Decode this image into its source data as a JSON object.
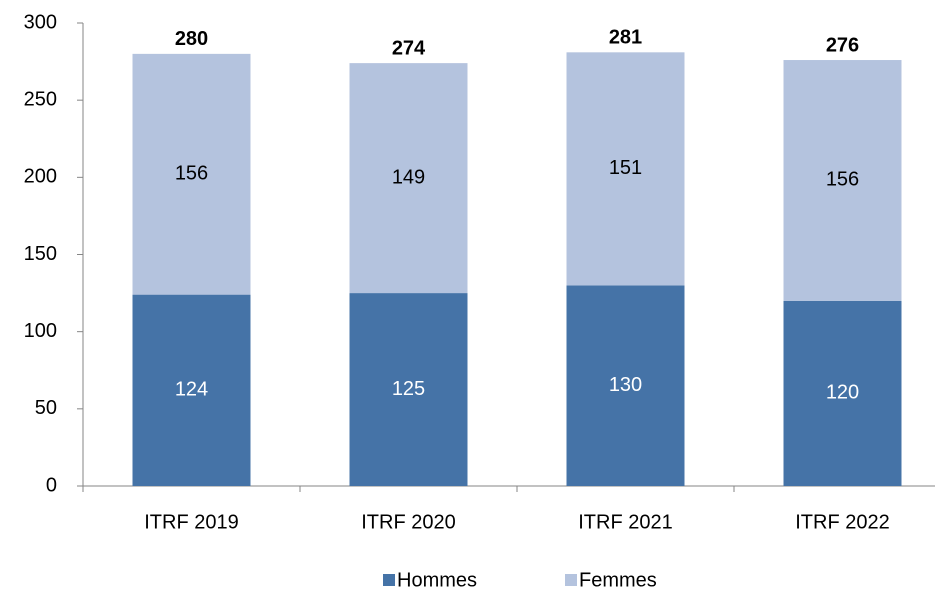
{
  "chart_data": {
    "type": "stacked_bar",
    "categories": [
      "ITRF 2019",
      "ITRF 2020",
      "ITRF 2021",
      "ITRF 2022"
    ],
    "series": [
      {
        "name": "Hommes",
        "color": "#4573a7",
        "values": [
          124,
          125,
          130,
          120
        ]
      },
      {
        "name": "Femmes",
        "color": "#b4c3de",
        "values": [
          156,
          149,
          151,
          156
        ]
      }
    ],
    "totals": [
      280,
      274,
      281,
      276
    ],
    "ylim": [
      0,
      300
    ],
    "yticks": [
      0,
      50,
      100,
      150,
      200,
      250,
      300
    ],
    "grid": false,
    "legend": "bottom"
  }
}
